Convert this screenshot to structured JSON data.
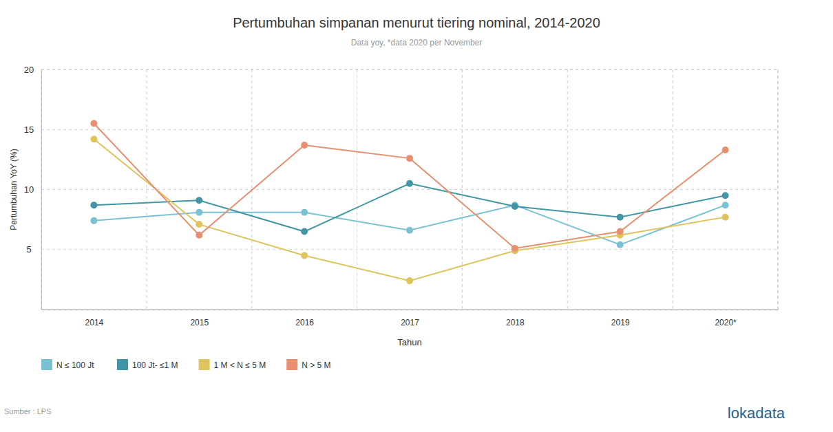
{
  "chart_data": {
    "type": "line",
    "title": "Pertumbuhan simpanan menurut tiering nominal, 2014-2020",
    "subtitle": "Data yoy, *data 2020 per November",
    "x_label": "Tahun",
    "y_label": "Pertumbuhan YoY (%)",
    "source": "Sumber : LPS",
    "logo": "lokadata",
    "categories": [
      "2014",
      "2015",
      "2016",
      "2017",
      "2018",
      "2019",
      "2020*"
    ],
    "series": [
      {
        "name": "N ≤ 100 Jt",
        "color": "#7ac1d3",
        "values": [
          7.4,
          8.1,
          8.1,
          6.6,
          8.7,
          5.4,
          8.7
        ]
      },
      {
        "name": "100 Jt- ≤1 M",
        "color": "#4295a5",
        "values": [
          8.7,
          9.1,
          6.5,
          10.5,
          8.6,
          7.7,
          9.5
        ]
      },
      {
        "name": "1 M < N ≤ 5 M",
        "color": "#dfc35b",
        "values": [
          14.2,
          7.1,
          4.5,
          2.4,
          4.9,
          6.2,
          7.7
        ]
      },
      {
        "name": "N > 5 M",
        "color": "#e78f6f",
        "values": [
          15.5,
          6.2,
          13.7,
          12.6,
          5.1,
          6.5,
          13.3
        ]
      }
    ],
    "ylim": [
      0,
      20
    ],
    "yticks": [
      5,
      10,
      15,
      20
    ],
    "grid": true,
    "legend": "bottom-left",
    "marker": "circle",
    "line_style": "solid"
  }
}
